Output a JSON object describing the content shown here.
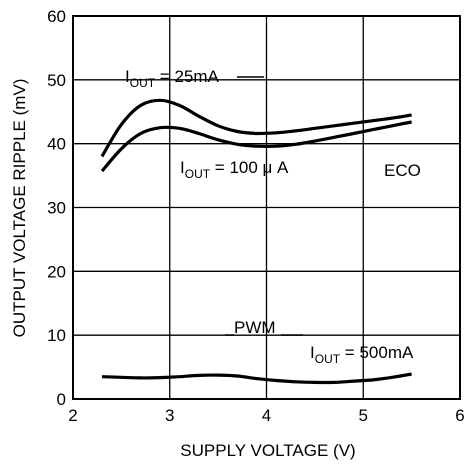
{
  "chart_data": {
    "type": "line",
    "xlabel": "SUPPLY VOLTAGE (V)",
    "ylabel": "OUTPUT VOLTAGE RIPPLE (mV)",
    "xlim": [
      2,
      6
    ],
    "ylim": [
      0,
      60
    ],
    "x_ticks": [
      "2",
      "3",
      "4",
      "5",
      "6"
    ],
    "y_ticks": [
      "0",
      "10",
      "20",
      "30",
      "40",
      "50",
      "60"
    ],
    "grid": true,
    "line_color": "#000000",
    "series": [
      {
        "x": [
          2.3,
          2.5,
          2.7,
          2.9,
          3.1,
          3.3,
          3.5,
          3.7,
          3.9,
          4.1,
          4.3,
          4.5,
          4.7,
          4.9,
          5.1,
          5.3,
          5.5
        ],
        "y": [
          38.0,
          43.0,
          46.0,
          46.8,
          46.0,
          44.3,
          42.8,
          41.9,
          41.6,
          41.7,
          42.0,
          42.4,
          42.8,
          43.2,
          43.6,
          44.0,
          44.5
        ]
      },
      {
        "x": [
          2.3,
          2.5,
          2.7,
          2.9,
          3.1,
          3.3,
          3.5,
          3.7,
          3.9,
          4.1,
          4.3,
          4.5,
          4.7,
          4.9,
          5.1,
          5.3,
          5.5
        ],
        "y": [
          35.7,
          39.2,
          41.6,
          42.5,
          42.4,
          41.6,
          40.6,
          39.9,
          39.6,
          39.6,
          39.9,
          40.4,
          41.0,
          41.6,
          42.2,
          42.8,
          43.4
        ]
      },
      {
        "x": [
          2.3,
          2.5,
          2.7,
          2.9,
          3.1,
          3.3,
          3.5,
          3.7,
          3.9,
          4.1,
          4.3,
          4.5,
          4.7,
          4.9,
          5.1,
          5.3,
          5.5
        ],
        "y": [
          3.5,
          3.4,
          3.3,
          3.35,
          3.5,
          3.7,
          3.75,
          3.6,
          3.2,
          2.9,
          2.7,
          2.6,
          2.6,
          2.8,
          3.0,
          3.4,
          3.9
        ]
      }
    ],
    "annotations": [
      {
        "main": "I",
        "sub": "OUT",
        "rest": " = 25mA"
      },
      {
        "main": "I",
        "sub": "OUT",
        "rest": " = 100 μ A"
      },
      {
        "main": "ECO"
      },
      {
        "main": "PWM"
      },
      {
        "main": "I",
        "sub": "OUT",
        "rest": " = 500mA"
      }
    ]
  }
}
